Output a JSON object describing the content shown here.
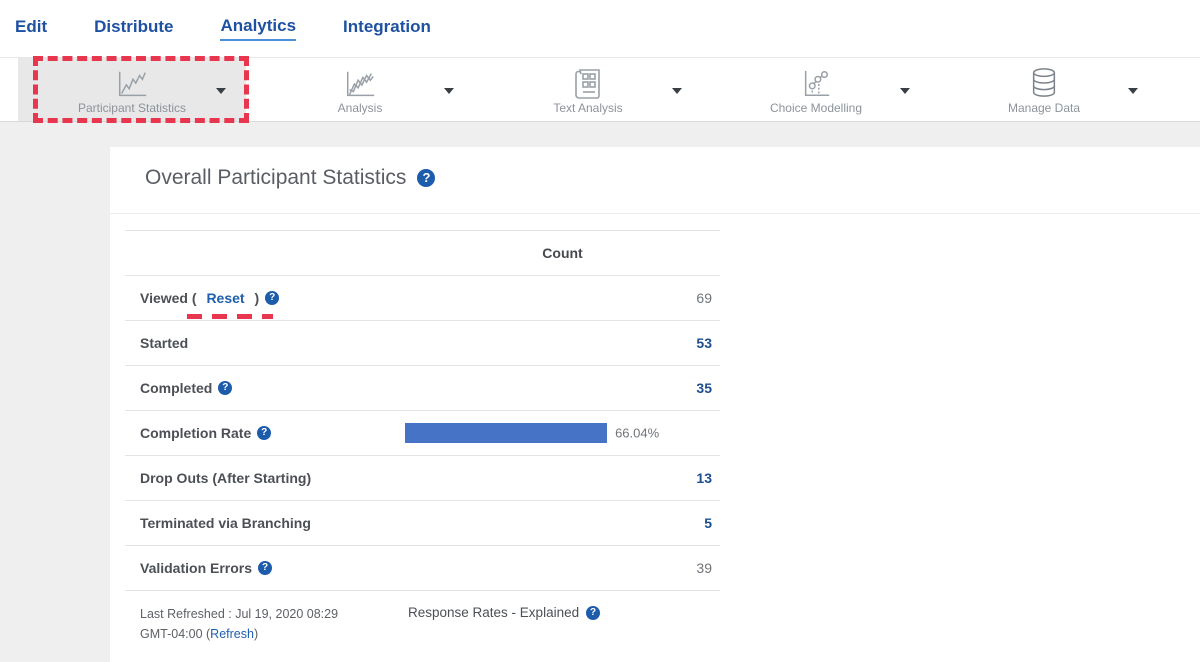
{
  "nav": {
    "items": [
      {
        "label": "Edit",
        "active": false
      },
      {
        "label": "Distribute",
        "active": false
      },
      {
        "label": "Analytics",
        "active": true
      },
      {
        "label": "Integration",
        "active": false
      }
    ]
  },
  "toolbar": {
    "items": [
      {
        "label": "Participant Statistics",
        "icon": "line-chart-icon",
        "selected": true,
        "annotated": true
      },
      {
        "label": "Analysis",
        "icon": "multi-line-chart-icon",
        "selected": false
      },
      {
        "label": "Text Analysis",
        "icon": "newspaper-icon",
        "selected": false
      },
      {
        "label": "Choice Modelling",
        "icon": "scatter-chart-icon",
        "selected": false
      },
      {
        "label": "Manage Data",
        "icon": "database-icon",
        "selected": false
      }
    ],
    "caret_icon": "caret-down-icon"
  },
  "main": {
    "title": "Overall Participant Statistics",
    "title_help_icon": "question-circle-icon",
    "table": {
      "count_header": "Count",
      "rows": [
        {
          "label_prefix": "Viewed ( ",
          "link": "Reset",
          "label_suffix": " )",
          "help": true,
          "annotated": true,
          "value": "69",
          "value_style": "gray"
        },
        {
          "label": "Started",
          "help": false,
          "value": "53",
          "value_style": "blue"
        },
        {
          "label": "Completed",
          "help": true,
          "value": "35",
          "value_style": "blue"
        },
        {
          "label": "Completion Rate",
          "help": true,
          "bar": {
            "percent": 66.04,
            "text": "66.04%"
          }
        },
        {
          "label": "Drop Outs (After Starting)",
          "help": false,
          "value": "13",
          "value_style": "blue"
        },
        {
          "label": "Terminated via Branching",
          "help": false,
          "value": "5",
          "value_style": "blue"
        },
        {
          "label": "Validation Errors",
          "help": true,
          "value": "39",
          "value_style": "gray"
        }
      ]
    },
    "footer": {
      "last_refreshed_prefix": "Last Refreshed : Jul 19, 2020 08:29 GMT-04:00 (",
      "refresh_link": "Refresh",
      "last_refreshed_suffix": ")",
      "response_rates_label": "Response Rates - Explained",
      "response_help_icon": "question-circle-icon"
    }
  },
  "icons": {
    "help_glyph": "?"
  },
  "colors": {
    "annotation_red": "#e8364e",
    "brand_blue": "#1e51a2",
    "active_underline_blue": "#4a90d9",
    "link_blue": "#1f5fad",
    "value_navy": "#1d4e8f",
    "bar_blue": "#4673c5",
    "help_icon_blue": "#1d5bab",
    "page_background": "#efefef",
    "selected_button_gray": "#e8e8e8"
  }
}
